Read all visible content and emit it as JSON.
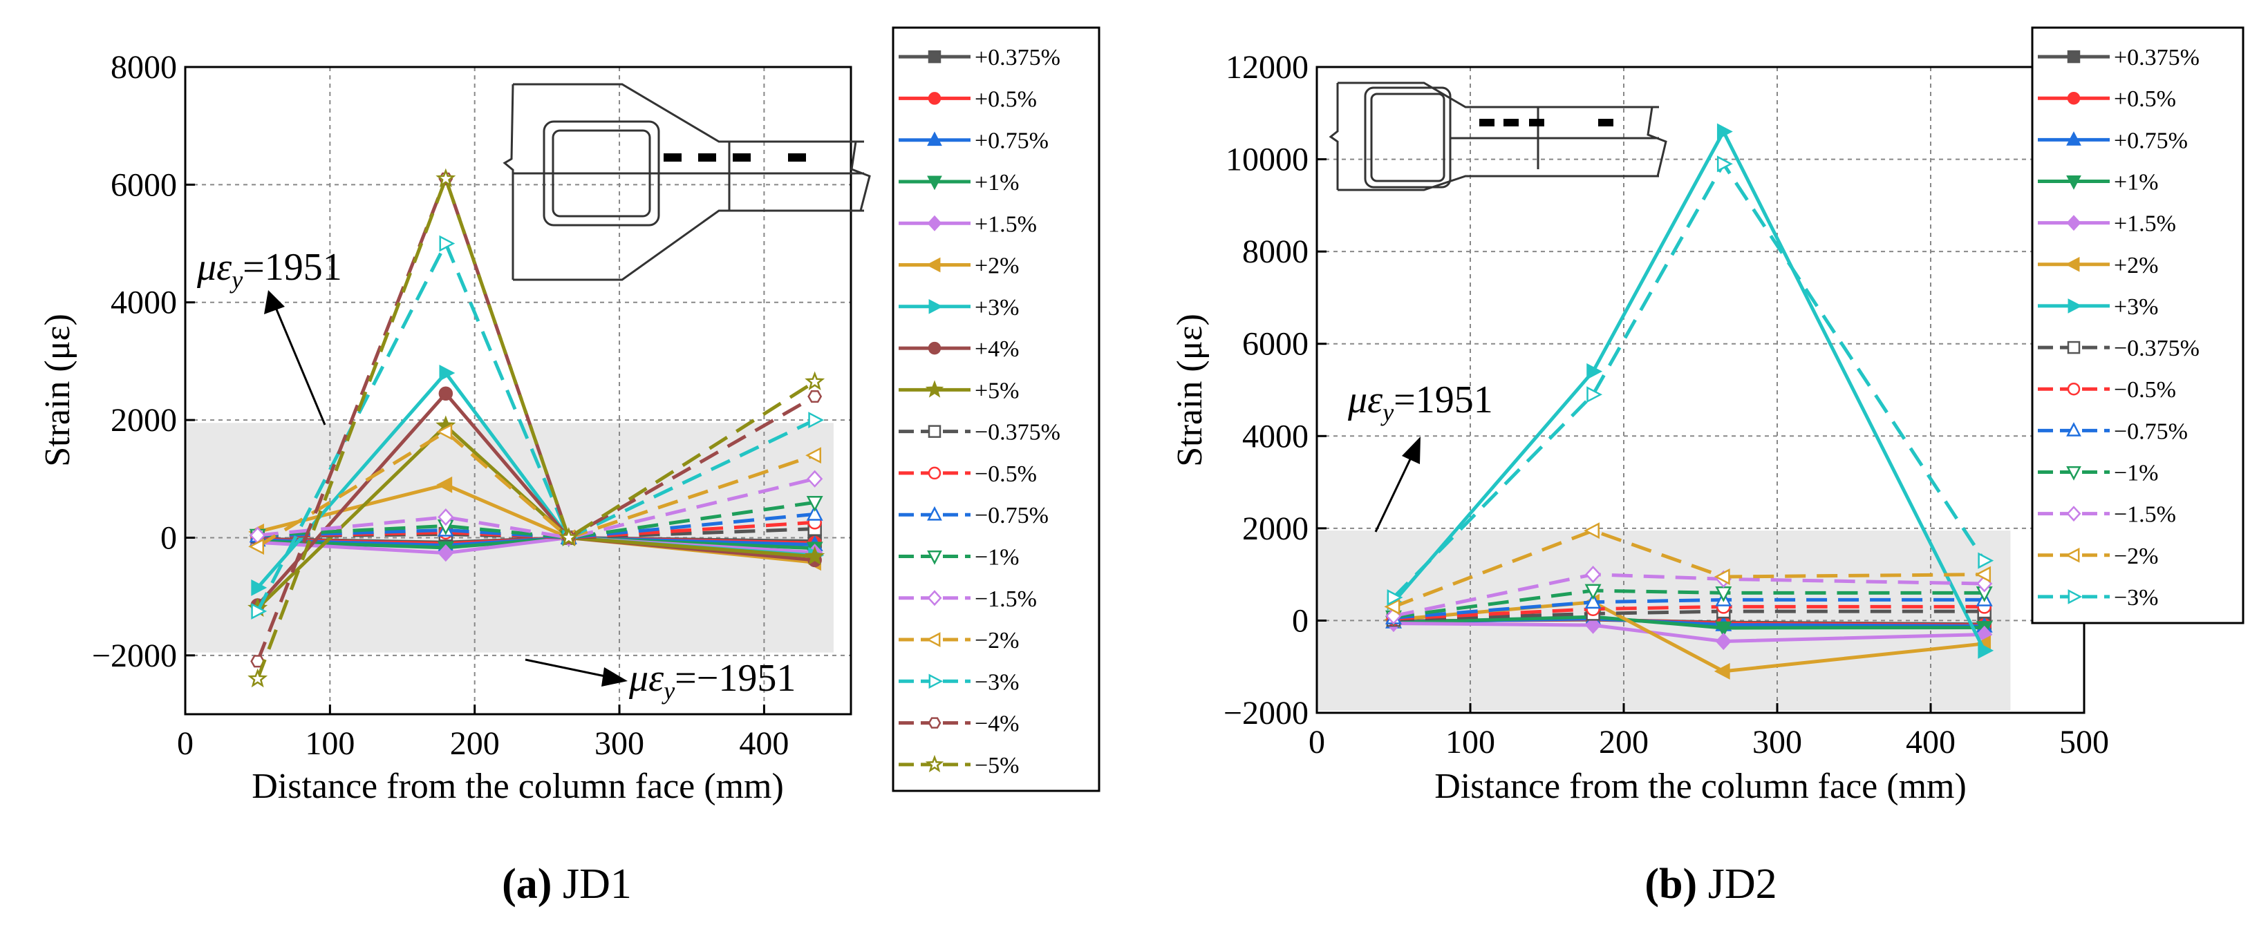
{
  "chart_data": [
    {
      "type": "line",
      "panel": "a",
      "caption_letter": "(a)",
      "caption_name": "JD1",
      "xlabel": "Distance from the column face (mm)",
      "ylabel": "Strain (με)",
      "xlim": [
        0,
        460
      ],
      "ylim": [
        -3000,
        8000
      ],
      "xticks": [
        0,
        100,
        200,
        300,
        400
      ],
      "yticks": [
        -2000,
        0,
        2000,
        4000,
        6000,
        8000
      ],
      "xtick_labels": [
        "0",
        "100",
        "200",
        "300",
        "400"
      ],
      "ytick_labels": [
        "−2000",
        "0",
        "2000",
        "4000",
        "6000",
        "8000"
      ],
      "grid": true,
      "yield_band": [
        -1951,
        1951
      ],
      "annotations": [
        {
          "prefix": "με",
          "sub": "y",
          "text": "=1951"
        },
        {
          "prefix": "με",
          "sub": "y",
          "text": "=−1951"
        }
      ],
      "x": [
        50,
        180,
        265,
        435
      ],
      "series": [
        {
          "name": "+0.375%",
          "color": "#555555",
          "marker": "square",
          "filled": true,
          "dashed": false,
          "values": [
            -20,
            -80,
            0,
            -60
          ]
        },
        {
          "name": "+0.5%",
          "color": "#ff3333",
          "marker": "circle",
          "filled": true,
          "dashed": false,
          "values": [
            -30,
            -100,
            0,
            -90
          ]
        },
        {
          "name": "+0.75%",
          "color": "#1f6fdf",
          "marker": "triangle-up",
          "filled": true,
          "dashed": false,
          "values": [
            -40,
            -130,
            0,
            -120
          ]
        },
        {
          "name": "+1%",
          "color": "#1e9e5a",
          "marker": "triangle-down",
          "filled": true,
          "dashed": false,
          "values": [
            -60,
            -170,
            0,
            -180
          ]
        },
        {
          "name": "+1.5%",
          "color": "#c77ee8",
          "marker": "diamond",
          "filled": true,
          "dashed": false,
          "values": [
            -80,
            -260,
            0,
            -250
          ]
        },
        {
          "name": "+2%",
          "color": "#d9a12a",
          "marker": "triangle-left",
          "filled": true,
          "dashed": false,
          "values": [
            100,
            900,
            0,
            -420
          ]
        },
        {
          "name": "+3%",
          "color": "#22c4c4",
          "marker": "triangle-right",
          "filled": true,
          "dashed": false,
          "values": [
            -850,
            2800,
            0,
            -300
          ]
        },
        {
          "name": "+4%",
          "color": "#9c4a4a",
          "marker": "circle",
          "filled": true,
          "dashed": false,
          "values": [
            -1150,
            2450,
            0,
            -380
          ]
        },
        {
          "name": "+5%",
          "color": "#8e8e16",
          "marker": "star",
          "filled": true,
          "dashed": false,
          "values": [
            -1200,
            1900,
            0,
            -320
          ]
        },
        {
          "name": "−0.375%",
          "color": "#555555",
          "marker": "square",
          "filled": false,
          "dashed": true,
          "values": [
            20,
            60,
            0,
            150
          ]
        },
        {
          "name": "−0.5%",
          "color": "#ff3333",
          "marker": "circle",
          "filled": false,
          "dashed": true,
          "values": [
            25,
            90,
            0,
            260
          ]
        },
        {
          "name": "−0.75%",
          "color": "#1f6fdf",
          "marker": "triangle-up",
          "filled": false,
          "dashed": true,
          "values": [
            30,
            130,
            0,
            400
          ]
        },
        {
          "name": "−1%",
          "color": "#1e9e5a",
          "marker": "triangle-down",
          "filled": false,
          "dashed": true,
          "values": [
            40,
            200,
            0,
            600
          ]
        },
        {
          "name": "−1.5%",
          "color": "#c77ee8",
          "marker": "diamond",
          "filled": false,
          "dashed": true,
          "values": [
            40,
            350,
            0,
            1000
          ]
        },
        {
          "name": "−2%",
          "color": "#d9a12a",
          "marker": "triangle-left",
          "filled": false,
          "dashed": true,
          "values": [
            -150,
            1800,
            0,
            1400
          ]
        },
        {
          "name": "−3%",
          "color": "#22c4c4",
          "marker": "triangle-right",
          "filled": false,
          "dashed": true,
          "values": [
            -1250,
            5000,
            0,
            2000
          ]
        },
        {
          "name": "−4%",
          "color": "#9c4a4a",
          "marker": "hexagon",
          "filled": false,
          "dashed": true,
          "values": [
            -2100,
            6100,
            0,
            2400
          ]
        },
        {
          "name": "−5%",
          "color": "#8e8e16",
          "marker": "star",
          "filled": false,
          "dashed": true,
          "values": [
            -2400,
            6100,
            0,
            2650
          ]
        }
      ]
    },
    {
      "type": "line",
      "panel": "b",
      "caption_letter": "(b)",
      "caption_name": "JD2",
      "xlabel": "Distance from the column face (mm)",
      "ylabel": "Strain (με)",
      "xlim": [
        0,
        500
      ],
      "ylim": [
        -2000,
        12000
      ],
      "xticks": [
        0,
        100,
        200,
        300,
        400,
        500
      ],
      "yticks": [
        -2000,
        0,
        2000,
        4000,
        6000,
        8000,
        10000,
        12000
      ],
      "xtick_labels": [
        "0",
        "100",
        "200",
        "300",
        "400",
        "500"
      ],
      "ytick_labels": [
        "−2000",
        "0",
        "2000",
        "4000",
        "6000",
        "8000",
        "10000",
        "12000"
      ],
      "grid": true,
      "yield_band": [
        -1951,
        1951
      ],
      "annotations": [
        {
          "prefix": "με",
          "sub": "y",
          "text": "=1951"
        }
      ],
      "x": [
        50,
        180,
        265,
        435
      ],
      "series": [
        {
          "name": "+0.375%",
          "color": "#555555",
          "marker": "square",
          "filled": true,
          "dashed": false,
          "values": [
            -10,
            20,
            -40,
            -80
          ]
        },
        {
          "name": "+0.5%",
          "color": "#ff3333",
          "marker": "circle",
          "filled": true,
          "dashed": false,
          "values": [
            -20,
            30,
            -60,
            -100
          ]
        },
        {
          "name": "+0.75%",
          "color": "#1f6fdf",
          "marker": "triangle-up",
          "filled": true,
          "dashed": false,
          "values": [
            -30,
            40,
            -90,
            -120
          ]
        },
        {
          "name": "+1%",
          "color": "#1e9e5a",
          "marker": "triangle-down",
          "filled": true,
          "dashed": false,
          "values": [
            -40,
            80,
            -160,
            -150
          ]
        },
        {
          "name": "+1.5%",
          "color": "#c77ee8",
          "marker": "diamond",
          "filled": true,
          "dashed": false,
          "values": [
            -60,
            -100,
            -450,
            -300
          ]
        },
        {
          "name": "+2%",
          "color": "#d9a12a",
          "marker": "triangle-left",
          "filled": true,
          "dashed": false,
          "values": [
            20,
            400,
            -1100,
            -500
          ]
        },
        {
          "name": "+3%",
          "color": "#22c4c4",
          "marker": "triangle-right",
          "filled": true,
          "dashed": false,
          "values": [
            400,
            5400,
            10600,
            -650
          ]
        },
        {
          "name": "−0.375%",
          "color": "#555555",
          "marker": "square",
          "filled": false,
          "dashed": true,
          "values": [
            20,
            150,
            200,
            200
          ]
        },
        {
          "name": "−0.5%",
          "color": "#ff3333",
          "marker": "circle",
          "filled": false,
          "dashed": true,
          "values": [
            40,
            250,
            300,
            300
          ]
        },
        {
          "name": "−0.75%",
          "color": "#1f6fdf",
          "marker": "triangle-up",
          "filled": false,
          "dashed": true,
          "values": [
            60,
            400,
            450,
            450
          ]
        },
        {
          "name": "−1%",
          "color": "#1e9e5a",
          "marker": "triangle-down",
          "filled": false,
          "dashed": true,
          "values": [
            80,
            650,
            600,
            600
          ]
        },
        {
          "name": "−1.5%",
          "color": "#c77ee8",
          "marker": "diamond",
          "filled": false,
          "dashed": true,
          "values": [
            100,
            1000,
            900,
            800
          ]
        },
        {
          "name": "−2%",
          "color": "#d9a12a",
          "marker": "triangle-left",
          "filled": false,
          "dashed": true,
          "values": [
            300,
            1950,
            950,
            1000
          ]
        },
        {
          "name": "−3%",
          "color": "#22c4c4",
          "marker": "triangle-right",
          "filled": false,
          "dashed": true,
          "values": [
            500,
            4900,
            9900,
            1300
          ]
        }
      ]
    }
  ]
}
